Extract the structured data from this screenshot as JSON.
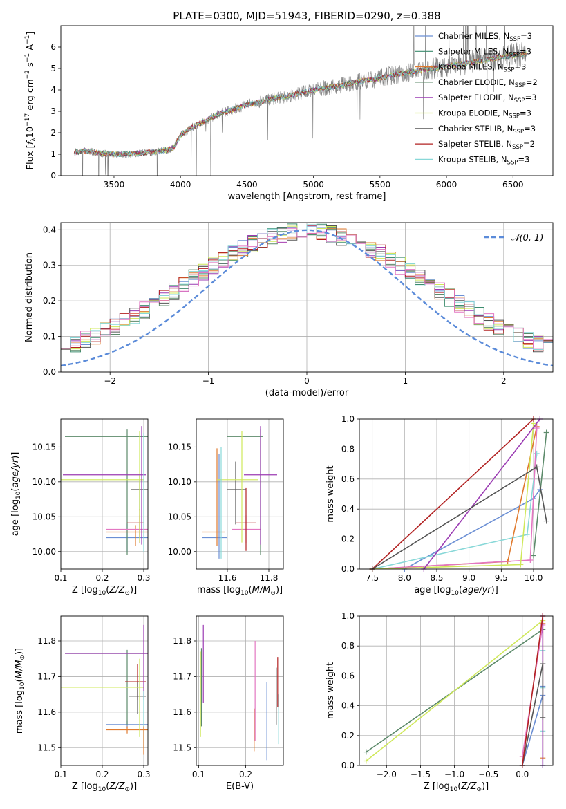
{
  "figure_title": "PLATE=0300, MJD=51943, FIBERID=0290, z=0.388",
  "legend_colors": [
    "#6b8fd4",
    "#3c8c6e",
    "#e07a2e",
    "#5c8a6a",
    "#9b3bb3",
    "#cfe85a",
    "#555555",
    "#b22222",
    "#88d8d8"
  ],
  "chart_data": [
    {
      "id": "spectrum",
      "type": "line",
      "title": "PLATE=0300, MJD=51943, FIBERID=0290, z=0.388",
      "xlabel": "wavelength [Angstrom, rest frame]",
      "ylabel": "Flux [f_λ 10^-17 erg cm^-2 s^-1 A^-1]",
      "xlim": [
        3100,
        6800
      ],
      "ylim": [
        0,
        7
      ],
      "xticks": [
        3500,
        4000,
        4500,
        5000,
        5500,
        6000,
        6500
      ],
      "yticks": [
        0,
        1,
        2,
        3,
        4,
        5,
        6
      ],
      "grid": false,
      "legend_position": "top-right",
      "observed_color": "#808080",
      "continuum": {
        "x": [
          3200,
          3300,
          3400,
          3500,
          3600,
          3700,
          3800,
          3900,
          3950,
          4000,
          4100,
          4200,
          4300,
          4400,
          4500,
          4600,
          4700,
          4800,
          4900,
          5000,
          5100,
          5200,
          5300,
          5400,
          5500,
          5600,
          5700,
          5800,
          5900,
          6000,
          6100,
          6200,
          6300,
          6400,
          6500,
          6600
        ],
        "y": [
          1.1,
          1.15,
          1.05,
          1.0,
          1.0,
          1.05,
          1.1,
          1.2,
          1.3,
          1.9,
          2.3,
          2.6,
          2.9,
          3.1,
          3.3,
          3.45,
          3.6,
          3.7,
          3.85,
          4.0,
          4.1,
          4.2,
          4.35,
          4.45,
          4.55,
          4.7,
          4.8,
          4.9,
          5.0,
          5.1,
          5.2,
          5.3,
          5.4,
          5.5,
          5.6,
          5.7
        ]
      },
      "legend": [
        {
          "label": "Chabrier MILES, N_SSP=3",
          "prefix": "Chabrier MILES, N",
          "sub": "SSP",
          "suffix": "=3",
          "color": "#6b8fd4"
        },
        {
          "label": "Salpeter MILES, N_SSP=3",
          "prefix": "Salpeter MILES, N",
          "sub": "SSP",
          "suffix": "=3",
          "color": "#3c8c6e"
        },
        {
          "label": "Kroupa MILES, N_SSP=3",
          "prefix": "Kroupa MILES, N",
          "sub": "SSP",
          "suffix": "=3",
          "color": "#e07a2e"
        },
        {
          "label": "Chabrier ELODIE, N_SSP=2",
          "prefix": "Chabrier ELODIE, N",
          "sub": "SSP",
          "suffix": "=2",
          "color": "#5c8a6a"
        },
        {
          "label": "Salpeter ELODIE, N_SSP=3",
          "prefix": "Salpeter ELODIE, N",
          "sub": "SSP",
          "suffix": "=3",
          "color": "#9b3bb3"
        },
        {
          "label": "Kroupa ELODIE, N_SSP=3",
          "prefix": "Kroupa ELODIE, N",
          "sub": "SSP",
          "suffix": "=3",
          "color": "#cfe85a"
        },
        {
          "label": "Chabrier STELIB, N_SSP=3",
          "prefix": "Chabrier STELIB, N",
          "sub": "SSP",
          "suffix": "=3",
          "color": "#555555"
        },
        {
          "label": "Salpeter STELIB, N_SSP=2",
          "prefix": "Salpeter STELIB, N",
          "sub": "SSP",
          "suffix": "=2",
          "color": "#b22222"
        },
        {
          "label": "Kroupa STELIB, N_SSP=3",
          "prefix": "Kroupa STELIB, N",
          "sub": "SSP",
          "suffix": "=3",
          "color": "#88d8d8"
        }
      ]
    },
    {
      "id": "residuals",
      "type": "histogram",
      "xlabel": "(data-model)/error",
      "ylabel": "Normed distribution",
      "xlim": [
        -2.5,
        2.5
      ],
      "ylim": [
        0,
        0.42
      ],
      "xticks": [
        -2,
        -1,
        0,
        1,
        2
      ],
      "yticks": [
        0.0,
        0.1,
        0.2,
        0.3,
        0.4
      ],
      "grid": true,
      "bin_width": 0.1,
      "legend_position": "top-right",
      "reference_curve": {
        "label": "N(0,1)",
        "text": "𝒩(0, 1)",
        "color": "#5b8bd9",
        "style": "dashed"
      }
    },
    {
      "id": "age-vs-Z",
      "type": "errorbar",
      "xlabel": "Z [log10(Z/Z⊙)]",
      "ylabel": "age [log10(age/yr)]",
      "xlim": [
        0.1,
        0.31
      ],
      "ylim": [
        9.975,
        10.19
      ],
      "xticks": [
        0.1,
        0.2,
        0.3
      ],
      "yticks": [
        10.0,
        10.05,
        10.1,
        10.15
      ],
      "ytick_format": "2",
      "grid": true,
      "points": [
        {
          "x": 0.26,
          "xerr": [
            0.05,
            0.05
          ],
          "y": 10.02,
          "yerr": [
            0.02,
            0.02
          ],
          "color": "#6b8fd4"
        },
        {
          "x": 0.26,
          "xerr": [
            0.15,
            0.15
          ],
          "y": 10.165,
          "yerr": [
            0.17,
            0.01
          ],
          "color": "#5c8a6a"
        },
        {
          "x": 0.28,
          "xerr": [
            0.07,
            0.03
          ],
          "y": 10.028,
          "yerr": [
            0.02,
            0.01
          ],
          "color": "#e07a2e"
        },
        {
          "x": 0.29,
          "xerr": [
            0.08,
            0.02
          ],
          "y": 10.032,
          "yerr": [
            0.02,
            0.02
          ],
          "color": "#e377c2"
        },
        {
          "x": 0.29,
          "xerr": [
            0.03,
            0.01
          ],
          "y": 10.041,
          "yerr": [
            0.02,
            0.02
          ],
          "color": "#b22222"
        },
        {
          "x": 0.29,
          "xerr": [
            0.02,
            0.02
          ],
          "y": 10.089,
          "yerr": [
            0.03,
            0.02
          ],
          "color": "#555555"
        },
        {
          "x": 0.29,
          "xerr": [
            0.19,
            0.01
          ],
          "y": 10.103,
          "yerr": [
            0.09,
            0.07
          ],
          "color": "#cfe85a"
        },
        {
          "x": 0.295,
          "xerr": [
            0.19,
            0.01
          ],
          "y": 10.11,
          "yerr": [
            0.1,
            0.07
          ],
          "color": "#9b3bb3"
        },
        {
          "x": 0.3,
          "xerr": [
            0.0,
            0.0
          ],
          "y": 10.1,
          "yerr": [
            0.1,
            0.07
          ],
          "color": "#88d8d8"
        }
      ]
    },
    {
      "id": "age-vs-mass",
      "type": "errorbar",
      "xlabel": "mass [log10(M/M⊙)]",
      "ylabel": "",
      "xlim": [
        11.45,
        11.87
      ],
      "ylim": [
        9.975,
        10.19
      ],
      "xticks": [
        11.6,
        11.8
      ],
      "yticks": [
        10.0,
        10.05,
        10.1,
        10.15
      ],
      "ytick_format": "2",
      "grid": true,
      "points": [
        {
          "x": 11.56,
          "xerr": [
            0.08,
            0.04
          ],
          "y": 10.02,
          "yerr": [
            0.03,
            0.12
          ],
          "color": "#6b8fd4"
        },
        {
          "x": 11.55,
          "xerr": [
            0.07,
            0.04
          ],
          "y": 10.028,
          "yerr": [
            0.02,
            0.12
          ],
          "color": "#e07a2e"
        },
        {
          "x": 11.76,
          "xerr": [
            0.16,
            0.01
          ],
          "y": 10.165,
          "yerr": [
            0.17,
            0.01
          ],
          "color": "#5c8a6a"
        },
        {
          "x": 11.69,
          "xerr": [
            0.07,
            0.07
          ],
          "y": 10.032,
          "yerr": [
            0.02,
            0.02
          ],
          "color": "#e377c2"
        },
        {
          "x": 11.69,
          "xerr": [
            0.05,
            0.05
          ],
          "y": 10.041,
          "yerr": [
            0.04,
            0.05
          ],
          "color": "#b22222"
        },
        {
          "x": 11.64,
          "xerr": [
            0.04,
            0.05
          ],
          "y": 10.089,
          "yerr": [
            0.05,
            0.04
          ],
          "color": "#555555"
        },
        {
          "x": 11.67,
          "xerr": [
            0.12,
            0.08
          ],
          "y": 10.103,
          "yerr": [
            0.09,
            0.07
          ],
          "color": "#cfe85a"
        },
        {
          "x": 11.76,
          "xerr": [
            0.08,
            0.08
          ],
          "y": 10.11,
          "yerr": [
            0.1,
            0.07
          ],
          "color": "#9b3bb3"
        },
        {
          "x": 11.57,
          "xerr": [
            0.0,
            0.0
          ],
          "y": 10.08,
          "yerr": [
            0.09,
            0.07
          ],
          "color": "#88d8d8"
        }
      ]
    },
    {
      "id": "massweight-vs-age",
      "type": "line",
      "xlabel": "age [log10(age/yr)]",
      "ylabel": "mass weight",
      "xlim": [
        7.3,
        10.3
      ],
      "ylim": [
        0,
        1.0
      ],
      "xticks": [
        7.5,
        8.0,
        8.5,
        9.0,
        9.5,
        10.0
      ],
      "yticks": [
        0.0,
        0.2,
        0.4,
        0.6,
        0.8,
        1.0
      ],
      "grid": true,
      "series": [
        {
          "color": "#6b8fd4",
          "x": [
            8.0,
            10.0,
            10.1
          ],
          "y": [
            0.0,
            0.47,
            0.53
          ]
        },
        {
          "color": "#88d8d8",
          "x": [
            7.5,
            9.9,
            10.05
          ],
          "y": [
            0.0,
            0.23,
            0.77
          ]
        },
        {
          "color": "#5c8a6a",
          "x": [
            10.0,
            10.2
          ],
          "y": [
            0.09,
            0.91
          ]
        },
        {
          "color": "#e07a2e",
          "x": [
            7.5,
            9.6,
            10.05
          ],
          "y": [
            0.0,
            0.05,
            0.95
          ]
        },
        {
          "color": "#e377c2",
          "x": [
            7.5,
            9.95,
            10.05
          ],
          "y": [
            0.0,
            0.06,
            0.94
          ]
        },
        {
          "color": "#cfe85a",
          "x": [
            7.5,
            9.8,
            10.0
          ],
          "y": [
            0.0,
            0.03,
            0.97
          ]
        },
        {
          "color": "#9b3bb3",
          "x": [
            8.3,
            10.1
          ],
          "y": [
            0.0,
            1.0
          ]
        },
        {
          "color": "#b22222",
          "x": [
            7.5,
            10.0
          ],
          "y": [
            0.0,
            1.0
          ]
        },
        {
          "color": "#555555",
          "x": [
            7.5,
            10.05,
            10.2
          ],
          "y": [
            0.0,
            0.68,
            0.32
          ]
        }
      ]
    },
    {
      "id": "mass-vs-Z",
      "type": "errorbar",
      "xlabel": "Z [log10(Z/Z⊙)]",
      "ylabel": "mass [log10(M/M⊙)]",
      "xlim": [
        0.1,
        0.31
      ],
      "ylim": [
        11.45,
        11.87
      ],
      "xticks": [
        0.1,
        0.2,
        0.3
      ],
      "yticks": [
        11.5,
        11.6,
        11.7,
        11.8
      ],
      "ytick_format": "1",
      "grid": true,
      "points": [
        {
          "x": 0.26,
          "xerr": [
            0.05,
            0.05
          ],
          "y": 11.565,
          "yerr": [
            0.01,
            0.01
          ],
          "color": "#6b8fd4"
        },
        {
          "x": 0.26,
          "xerr": [
            0.05,
            0.05
          ],
          "y": 11.55,
          "yerr": [
            0.01,
            0.01
          ],
          "color": "#e07a2e"
        },
        {
          "x": 0.26,
          "xerr": [
            0.15,
            0.05
          ],
          "y": 11.765,
          "yerr": [
            0.2,
            0.01
          ],
          "color": "#5c8a6a"
        },
        {
          "x": 0.285,
          "xerr": [
            0.03,
            0.02
          ],
          "y": 11.685,
          "yerr": [
            0.05,
            0.05
          ],
          "color": "#b22222"
        },
        {
          "x": 0.285,
          "xerr": [
            0.02,
            0.02
          ],
          "y": 11.645,
          "yerr": [
            0.05,
            0.04
          ],
          "color": "#555555"
        },
        {
          "x": 0.29,
          "xerr": [
            0.19,
            0.01
          ],
          "y": 11.67,
          "yerr": [
            0.14,
            0.08
          ],
          "color": "#cfe85a"
        },
        {
          "x": 0.3,
          "xerr": [
            0.19,
            0.01
          ],
          "y": 11.765,
          "yerr": [
            0.13,
            0.08
          ],
          "color": "#9b3bb3"
        },
        {
          "x": 0.3,
          "xerr": [
            0.0,
            0.0
          ],
          "y": 11.58,
          "yerr": [
            0.08,
            0.08
          ],
          "color": "#88d8d8"
        },
        {
          "x": 0.3,
          "xerr": [
            0.0,
            0.0
          ],
          "y": 11.52,
          "yerr": [
            0.04,
            0.04
          ],
          "color": "#e07a2e"
        }
      ]
    },
    {
      "id": "mass-vs-EBV",
      "type": "errorbar",
      "xlabel": "E(B-V)",
      "ylabel": "",
      "xlim": [
        0.095,
        0.28
      ],
      "ylim": [
        11.45,
        11.87
      ],
      "xticks": [
        0.1,
        0.2
      ],
      "yticks": [
        11.5,
        11.6,
        11.7,
        11.8
      ],
      "ytick_format": "1",
      "grid": true,
      "points": [
        {
          "x": 0.106,
          "xerr": [
            0.0,
            0.0
          ],
          "y": 11.67,
          "yerr": [
            0.11,
            0.11
          ],
          "color": "#5c8a6a"
        },
        {
          "x": 0.104,
          "xerr": [
            0.0,
            0.0
          ],
          "y": 11.64,
          "yerr": [
            0.11,
            0.13
          ],
          "color": "#cfe85a"
        },
        {
          "x": 0.11,
          "xerr": [
            0.0,
            0.0
          ],
          "y": 11.735,
          "yerr": [
            0.11,
            0.11
          ],
          "color": "#9b3bb3"
        },
        {
          "x": 0.218,
          "xerr": [
            0.0,
            0.0
          ],
          "y": 11.55,
          "yerr": [
            0.06,
            0.06
          ],
          "color": "#e07a2e"
        },
        {
          "x": 0.22,
          "xerr": [
            0.0,
            0.0
          ],
          "y": 11.66,
          "yerr": [
            0.14,
            0.14
          ],
          "color": "#e377c2"
        },
        {
          "x": 0.245,
          "xerr": [
            0.0,
            0.0
          ],
          "y": 11.575,
          "yerr": [
            0.11,
            0.11
          ],
          "color": "#6b8fd4"
        },
        {
          "x": 0.265,
          "xerr": [
            0.0,
            0.0
          ],
          "y": 11.645,
          "yerr": [
            0.08,
            0.08
          ],
          "color": "#555555"
        },
        {
          "x": 0.268,
          "xerr": [
            0.0,
            0.0
          ],
          "y": 11.685,
          "yerr": [
            0.07,
            0.07
          ],
          "color": "#b22222"
        },
        {
          "x": 0.27,
          "xerr": [
            0.0,
            0.0
          ],
          "y": 11.58,
          "yerr": [
            0.07,
            0.07
          ],
          "color": "#88d8d8"
        }
      ]
    },
    {
      "id": "massweight-vs-Z",
      "type": "line",
      "xlabel": "Z [log10(Z/Z⊙)]",
      "ylabel": "mass weight",
      "xlim": [
        -2.4,
        0.45
      ],
      "ylim": [
        0,
        1.0
      ],
      "xticks": [
        -2.0,
        -1.5,
        -1.0,
        -0.5,
        0.0
      ],
      "yticks": [
        0.0,
        0.2,
        0.4,
        0.6,
        0.8,
        1.0
      ],
      "grid": true,
      "series": [
        {
          "color": "#5c8a6a",
          "x": [
            -2.3,
            0.3
          ],
          "y": [
            0.09,
            0.91
          ]
        },
        {
          "color": "#cfe85a",
          "x": [
            -2.3,
            0.3
          ],
          "y": [
            0.03,
            0.97
          ]
        },
        {
          "color": "#6b8fd4",
          "x": [
            0.0,
            0.3,
            0.3
          ],
          "y": [
            0.0,
            0.47,
            0.53
          ]
        },
        {
          "color": "#88d8d8",
          "x": [
            0.3,
            0.3,
            0.3,
            0.3
          ],
          "y": [
            0.0,
            0.23,
            0.52,
            0.77
          ]
        },
        {
          "color": "#e07a2e",
          "x": [
            0.3,
            0.3
          ],
          "y": [
            0.05,
            0.95
          ]
        },
        {
          "color": "#e377c2",
          "x": [
            0.0,
            0.3
          ],
          "y": [
            0.06,
            0.94
          ]
        },
        {
          "color": "#9b3bb3",
          "x": [
            0.3,
            0.3
          ],
          "y": [
            0.0,
            1.0
          ]
        },
        {
          "color": "#555555",
          "x": [
            0.0,
            0.3,
            0.3
          ],
          "y": [
            0.0,
            0.68,
            0.32
          ]
        },
        {
          "color": "#b22222",
          "x": [
            0.0,
            0.3
          ],
          "y": [
            0.0,
            1.0
          ]
        }
      ]
    }
  ]
}
